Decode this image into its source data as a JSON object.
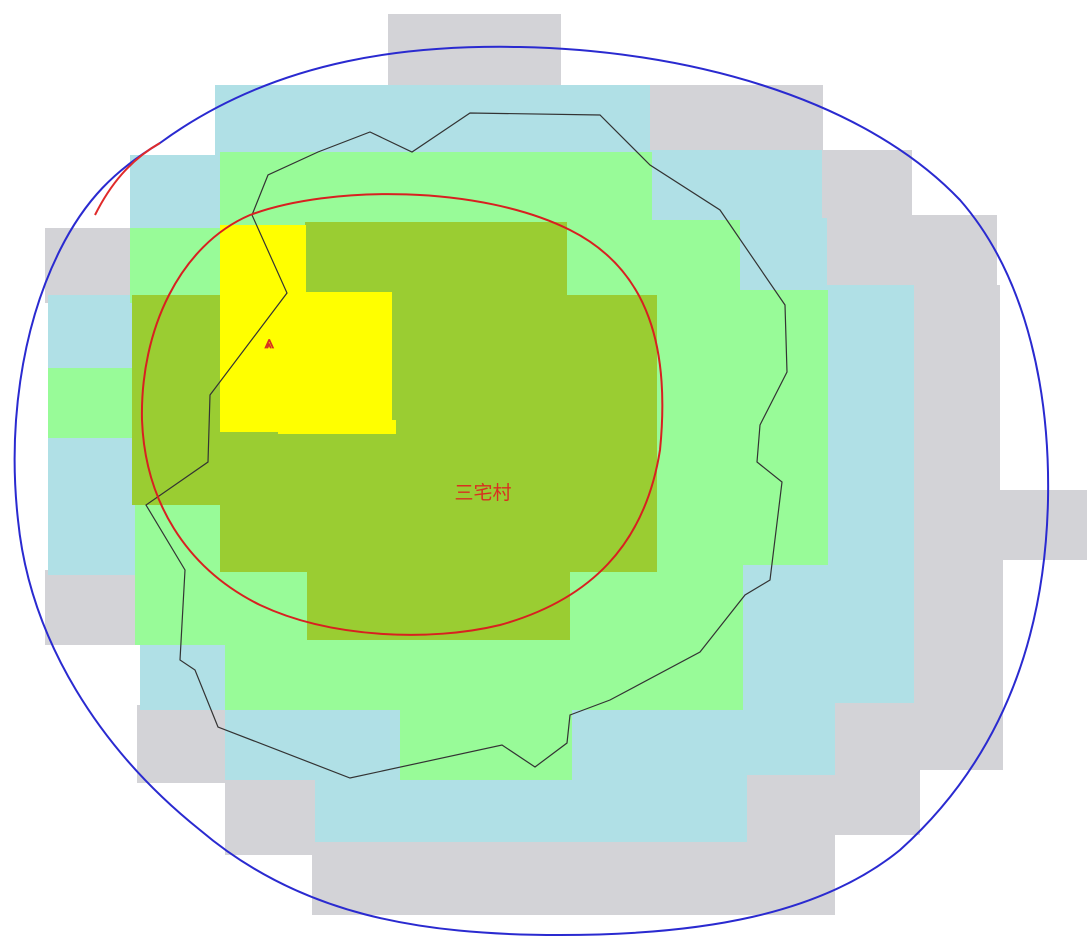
{
  "map": {
    "place_label": "三宅村",
    "summit_marker_icon": "summit-triangle-icon",
    "summit_marker_glyph": "⩓",
    "colors": {
      "background": "#ffffff",
      "zone_outer": "#d3d3d7",
      "zone_4": "#b0e0e6",
      "zone_3": "#98fb98",
      "zone_2": "#9acd32",
      "zone_1": "#ffff00",
      "outer_boundary": "#2a2ad0",
      "outer_boundary_segment": "#e02a2a",
      "inner_boundary": "#d82020",
      "coastline": "#333333",
      "label": "#d83020"
    }
  }
}
